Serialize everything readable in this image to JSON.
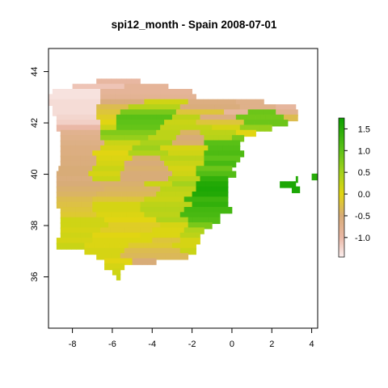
{
  "chart_data": {
    "type": "heatmap",
    "title": "spi12_month - Spain 2008-07-01",
    "xlabel": "",
    "ylabel": "",
    "xlim": [
      -9.2,
      4.3
    ],
    "ylim": [
      34.0,
      44.9
    ],
    "x_ticks": [
      -8,
      -6,
      -4,
      -2,
      0,
      2,
      4
    ],
    "y_ticks": [
      36,
      38,
      40,
      42,
      44
    ],
    "x_tick_labels": [
      "-8",
      "-6",
      "-4",
      "-2",
      "0",
      "2",
      "4"
    ],
    "y_tick_labels": [
      "36",
      "38",
      "40",
      "42",
      "44"
    ],
    "grid": false,
    "legend": {
      "position": "right",
      "range": [
        -1.45,
        1.75
      ],
      "ticks": [
        -1.0,
        -0.5,
        0.0,
        0.5,
        1.0,
        1.5
      ],
      "tick_labels": [
        "-1.0",
        "-0.5",
        "0.0",
        "0.5",
        "1.0",
        "1.5"
      ],
      "color_stops": [
        {
          "value": -1.45,
          "color": "#fbeeee"
        },
        {
          "value": -1.0,
          "color": "#eab8a6"
        },
        {
          "value": -0.5,
          "color": "#d8ac78"
        },
        {
          "value": 0.0,
          "color": "#e1d512"
        },
        {
          "value": 0.5,
          "color": "#a4d21c"
        },
        {
          "value": 1.0,
          "color": "#5ec218"
        },
        {
          "value": 1.75,
          "color": "#0ca000"
        }
      ]
    },
    "cell_size_deg": 0.25,
    "cell_rows": [
      {
        "lat": 43.6,
        "lon_from": -6.8,
        "lon_to": -4.6,
        "value": -0.95
      },
      {
        "lat": 43.4,
        "lon_from": -8.0,
        "lon_to": -5.4,
        "value": -1.1
      },
      {
        "lat": 43.4,
        "lon_from": -5.4,
        "lon_to": -3.2,
        "value": -0.85
      },
      {
        "lat": 43.2,
        "lon_from": -9.0,
        "lon_to": -6.6,
        "value": -1.35
      },
      {
        "lat": 43.2,
        "lon_from": -6.6,
        "lon_to": -2.0,
        "value": -0.85
      },
      {
        "lat": 43.0,
        "lon_from": -9.2,
        "lon_to": -6.6,
        "value": -1.35
      },
      {
        "lat": 43.0,
        "lon_from": -6.6,
        "lon_to": -1.8,
        "value": -0.8
      },
      {
        "lat": 42.8,
        "lon_from": -9.2,
        "lon_to": -6.6,
        "value": -1.3
      },
      {
        "lat": 42.8,
        "lon_from": -6.6,
        "lon_to": -4.4,
        "value": -0.55
      },
      {
        "lat": 42.8,
        "lon_from": -4.4,
        "lon_to": -2.2,
        "value": 0.15
      },
      {
        "lat": 42.8,
        "lon_from": -2.2,
        "lon_to": 0.2,
        "value": -0.6
      },
      {
        "lat": 42.8,
        "lon_from": 0.2,
        "lon_to": 1.6,
        "value": -0.7
      },
      {
        "lat": 42.6,
        "lon_from": -9.0,
        "lon_to": -6.8,
        "value": -1.3
      },
      {
        "lat": 42.6,
        "lon_from": -6.8,
        "lon_to": -5.2,
        "value": -0.3
      },
      {
        "lat": 42.6,
        "lon_from": -5.2,
        "lon_to": -2.6,
        "value": 0.35
      },
      {
        "lat": 42.6,
        "lon_from": -2.6,
        "lon_to": 0.4,
        "value": -0.55
      },
      {
        "lat": 42.6,
        "lon_from": 0.4,
        "lon_to": 2.2,
        "value": -0.7
      },
      {
        "lat": 42.6,
        "lon_from": 2.2,
        "lon_to": 3.2,
        "value": -0.9
      },
      {
        "lat": 42.4,
        "lon_from": -9.0,
        "lon_to": -6.8,
        "value": -1.3
      },
      {
        "lat": 42.4,
        "lon_from": -6.8,
        "lon_to": -5.6,
        "value": -0.2
      },
      {
        "lat": 42.4,
        "lon_from": -5.6,
        "lon_to": -2.8,
        "value": 0.8
      },
      {
        "lat": 42.4,
        "lon_from": -2.8,
        "lon_to": -0.4,
        "value": -0.2
      },
      {
        "lat": 42.4,
        "lon_from": -0.4,
        "lon_to": 0.8,
        "value": -0.9
      },
      {
        "lat": 42.4,
        "lon_from": 0.8,
        "lon_to": 2.2,
        "value": 0.9
      },
      {
        "lat": 42.4,
        "lon_from": 2.2,
        "lon_to": 3.3,
        "value": -0.75
      },
      {
        "lat": 42.2,
        "lon_from": -8.8,
        "lon_to": -6.8,
        "value": -1.25
      },
      {
        "lat": 42.2,
        "lon_from": -6.8,
        "lon_to": -5.8,
        "value": -0.1
      },
      {
        "lat": 42.2,
        "lon_from": -5.8,
        "lon_to": -3.0,
        "value": 1.05
      },
      {
        "lat": 42.2,
        "lon_from": -3.0,
        "lon_to": -1.6,
        "value": 0.3
      },
      {
        "lat": 42.2,
        "lon_from": -1.6,
        "lon_to": 0.2,
        "value": -0.6
      },
      {
        "lat": 42.2,
        "lon_from": 0.2,
        "lon_to": 2.6,
        "value": 0.85
      },
      {
        "lat": 42.2,
        "lon_from": 2.6,
        "lon_to": 3.3,
        "value": -0.3
      },
      {
        "lat": 42.0,
        "lon_from": -8.8,
        "lon_to": -6.6,
        "value": -1.2
      },
      {
        "lat": 42.0,
        "lon_from": -6.6,
        "lon_to": -5.8,
        "value": 0.0
      },
      {
        "lat": 42.0,
        "lon_from": -5.8,
        "lon_to": -3.4,
        "value": 1.0
      },
      {
        "lat": 42.0,
        "lon_from": -3.4,
        "lon_to": -1.8,
        "value": 0.2
      },
      {
        "lat": 42.0,
        "lon_from": -1.8,
        "lon_to": 0.6,
        "value": -0.2
      },
      {
        "lat": 42.0,
        "lon_from": 0.6,
        "lon_to": 2.8,
        "value": 0.9
      },
      {
        "lat": 41.8,
        "lon_from": -8.8,
        "lon_to": -6.6,
        "value": -1.0
      },
      {
        "lat": 41.8,
        "lon_from": -6.6,
        "lon_to": -5.8,
        "value": 0.2
      },
      {
        "lat": 41.8,
        "lon_from": -5.8,
        "lon_to": -3.6,
        "value": 0.95
      },
      {
        "lat": 41.8,
        "lon_from": -3.6,
        "lon_to": -1.0,
        "value": 0.25
      },
      {
        "lat": 41.8,
        "lon_from": -1.0,
        "lon_to": 0.4,
        "value": 0.1
      },
      {
        "lat": 41.8,
        "lon_from": 0.4,
        "lon_to": 2.0,
        "value": 0.6
      },
      {
        "lat": 41.6,
        "lon_from": -8.6,
        "lon_to": -6.6,
        "value": -0.75
      },
      {
        "lat": 41.6,
        "lon_from": -6.6,
        "lon_to": -3.8,
        "value": 0.75
      },
      {
        "lat": 41.6,
        "lon_from": -3.8,
        "lon_to": -2.6,
        "value": 0.3
      },
      {
        "lat": 41.6,
        "lon_from": -2.6,
        "lon_to": -1.6,
        "value": -0.4
      },
      {
        "lat": 41.6,
        "lon_from": -1.6,
        "lon_to": 0.2,
        "value": 0.3
      },
      {
        "lat": 41.6,
        "lon_from": 0.2,
        "lon_to": 1.2,
        "value": 0.0
      },
      {
        "lat": 41.4,
        "lon_from": -8.6,
        "lon_to": -6.6,
        "value": -0.7
      },
      {
        "lat": 41.4,
        "lon_from": -6.6,
        "lon_to": -4.2,
        "value": 0.6
      },
      {
        "lat": 41.4,
        "lon_from": -4.2,
        "lon_to": -2.8,
        "value": 0.3
      },
      {
        "lat": 41.4,
        "lon_from": -2.8,
        "lon_to": -1.4,
        "value": -0.5
      },
      {
        "lat": 41.4,
        "lon_from": -1.4,
        "lon_to": 0.0,
        "value": 0.35
      },
      {
        "lat": 41.4,
        "lon_from": 0.0,
        "lon_to": 0.6,
        "value": 0.8
      },
      {
        "lat": 41.2,
        "lon_from": -8.6,
        "lon_to": -6.4,
        "value": -0.65
      },
      {
        "lat": 41.2,
        "lon_from": -6.4,
        "lon_to": -4.6,
        "value": 0.2
      },
      {
        "lat": 41.2,
        "lon_from": -4.6,
        "lon_to": -3.0,
        "value": 0.45
      },
      {
        "lat": 41.2,
        "lon_from": -3.0,
        "lon_to": -1.4,
        "value": -0.45
      },
      {
        "lat": 41.2,
        "lon_from": -1.4,
        "lon_to": 0.4,
        "value": 1.05
      },
      {
        "lat": 41.0,
        "lon_from": -8.6,
        "lon_to": -6.6,
        "value": -0.6
      },
      {
        "lat": 41.0,
        "lon_from": -6.6,
        "lon_to": -5.0,
        "value": 0.1
      },
      {
        "lat": 41.0,
        "lon_from": -5.0,
        "lon_to": -3.6,
        "value": 0.55
      },
      {
        "lat": 41.0,
        "lon_from": -3.6,
        "lon_to": -1.2,
        "value": 0.1
      },
      {
        "lat": 41.0,
        "lon_from": -1.2,
        "lon_to": 0.4,
        "value": 1.1
      },
      {
        "lat": 40.8,
        "lon_from": -8.6,
        "lon_to": -7.0,
        "value": -0.6
      },
      {
        "lat": 40.8,
        "lon_from": -7.0,
        "lon_to": -5.2,
        "value": 0.0
      },
      {
        "lat": 40.8,
        "lon_from": -5.2,
        "lon_to": -3.2,
        "value": 0.4
      },
      {
        "lat": 40.8,
        "lon_from": -3.2,
        "lon_to": -1.4,
        "value": 0.15
      },
      {
        "lat": 40.8,
        "lon_from": -1.4,
        "lon_to": 0.6,
        "value": 1.15
      },
      {
        "lat": 40.6,
        "lon_from": -8.6,
        "lon_to": -6.8,
        "value": -0.55
      },
      {
        "lat": 40.6,
        "lon_from": -6.8,
        "lon_to": -5.0,
        "value": 0.05
      },
      {
        "lat": 40.6,
        "lon_from": -5.0,
        "lon_to": -3.6,
        "value": -0.45
      },
      {
        "lat": 40.6,
        "lon_from": -3.6,
        "lon_to": -1.4,
        "value": 0.3
      },
      {
        "lat": 40.6,
        "lon_from": -1.4,
        "lon_to": 0.4,
        "value": 1.0
      },
      {
        "lat": 40.4,
        "lon_from": -8.6,
        "lon_to": -6.8,
        "value": -0.55
      },
      {
        "lat": 40.4,
        "lon_from": -6.8,
        "lon_to": -5.4,
        "value": 0.1
      },
      {
        "lat": 40.4,
        "lon_from": -5.4,
        "lon_to": -3.4,
        "value": -0.5
      },
      {
        "lat": 40.4,
        "lon_from": -3.4,
        "lon_to": -1.4,
        "value": 0.2
      },
      {
        "lat": 40.4,
        "lon_from": -1.4,
        "lon_to": 0.2,
        "value": 1.2
      },
      {
        "lat": 40.2,
        "lon_from": -8.7,
        "lon_to": -7.0,
        "value": -0.5
      },
      {
        "lat": 40.2,
        "lon_from": -7.0,
        "lon_to": -5.4,
        "value": 0.2
      },
      {
        "lat": 40.2,
        "lon_from": -5.4,
        "lon_to": -3.2,
        "value": -0.45
      },
      {
        "lat": 40.2,
        "lon_from": -3.2,
        "lon_to": -1.8,
        "value": 0.1
      },
      {
        "lat": 40.2,
        "lon_from": -1.8,
        "lon_to": 0.0,
        "value": 0.9
      },
      {
        "lat": 40.0,
        "lon_from": -8.8,
        "lon_to": -7.2,
        "value": -0.5
      },
      {
        "lat": 40.0,
        "lon_from": -7.2,
        "lon_to": -5.6,
        "value": 0.1
      },
      {
        "lat": 40.0,
        "lon_from": -5.6,
        "lon_to": -3.0,
        "value": -0.5
      },
      {
        "lat": 40.0,
        "lon_from": -3.0,
        "lon_to": -1.8,
        "value": 0.15
      },
      {
        "lat": 40.0,
        "lon_from": -1.8,
        "lon_to": 0.2,
        "value": 1.1
      },
      {
        "lat": 39.8,
        "lon_from": -8.8,
        "lon_to": -7.0,
        "value": -0.55
      },
      {
        "lat": 39.8,
        "lon_from": -7.0,
        "lon_to": -5.6,
        "value": 0.2
      },
      {
        "lat": 39.8,
        "lon_from": -5.6,
        "lon_to": -3.2,
        "value": -0.5
      },
      {
        "lat": 39.8,
        "lon_from": -3.2,
        "lon_to": -1.6,
        "value": 0.3
      },
      {
        "lat": 39.8,
        "lon_from": -1.6,
        "lon_to": -0.2,
        "value": 1.4
      },
      {
        "lat": 39.6,
        "lon_from": -8.8,
        "lon_to": -6.6,
        "value": -0.5
      },
      {
        "lat": 39.6,
        "lon_from": -6.6,
        "lon_to": -4.4,
        "value": -0.45
      },
      {
        "lat": 39.6,
        "lon_from": -4.4,
        "lon_to": -3.0,
        "value": 0.2
      },
      {
        "lat": 39.6,
        "lon_from": -3.0,
        "lon_to": -1.8,
        "value": 0.5
      },
      {
        "lat": 39.6,
        "lon_from": -1.8,
        "lon_to": -0.2,
        "value": 1.55
      },
      {
        "lat": 39.4,
        "lon_from": -8.8,
        "lon_to": -6.4,
        "value": -0.45
      },
      {
        "lat": 39.4,
        "lon_from": -6.4,
        "lon_to": -3.6,
        "value": -0.4
      },
      {
        "lat": 39.4,
        "lon_from": -3.6,
        "lon_to": -1.8,
        "value": 0.3
      },
      {
        "lat": 39.4,
        "lon_from": -1.8,
        "lon_to": -0.2,
        "value": 1.6
      },
      {
        "lat": 39.2,
        "lon_from": -8.8,
        "lon_to": -6.8,
        "value": -0.4
      },
      {
        "lat": 39.2,
        "lon_from": -6.8,
        "lon_to": -3.8,
        "value": -0.35
      },
      {
        "lat": 39.2,
        "lon_from": -3.8,
        "lon_to": -2.0,
        "value": 0.25
      },
      {
        "lat": 39.2,
        "lon_from": -2.0,
        "lon_to": -0.2,
        "value": 1.55
      },
      {
        "lat": 39.0,
        "lon_from": -8.8,
        "lon_to": -7.0,
        "value": -0.3
      },
      {
        "lat": 39.0,
        "lon_from": -7.0,
        "lon_to": -4.4,
        "value": -0.2
      },
      {
        "lat": 39.0,
        "lon_from": -4.4,
        "lon_to": -2.4,
        "value": 0.2
      },
      {
        "lat": 39.0,
        "lon_from": -2.4,
        "lon_to": -0.2,
        "value": 1.3
      },
      {
        "lat": 38.8,
        "lon_from": -8.8,
        "lon_to": -7.0,
        "value": -0.25
      },
      {
        "lat": 38.8,
        "lon_from": -7.0,
        "lon_to": -4.6,
        "value": 0.1
      },
      {
        "lat": 38.8,
        "lon_from": -4.6,
        "lon_to": -2.0,
        "value": 0.3
      },
      {
        "lat": 38.8,
        "lon_from": -2.0,
        "lon_to": -0.2,
        "value": 1.4
      },
      {
        "lat": 38.6,
        "lon_from": -8.6,
        "lon_to": -7.0,
        "value": -0.2
      },
      {
        "lat": 38.6,
        "lon_from": -7.0,
        "lon_to": -4.6,
        "value": 0.1
      },
      {
        "lat": 38.6,
        "lon_from": -4.6,
        "lon_to": -2.4,
        "value": 0.35
      },
      {
        "lat": 38.6,
        "lon_from": -2.4,
        "lon_to": 0.0,
        "value": 1.25
      },
      {
        "lat": 38.4,
        "lon_from": -8.6,
        "lon_to": -6.8,
        "value": -0.15
      },
      {
        "lat": 38.4,
        "lon_from": -6.8,
        "lon_to": -4.4,
        "value": 0.05
      },
      {
        "lat": 38.4,
        "lon_from": -4.4,
        "lon_to": -2.6,
        "value": 0.3
      },
      {
        "lat": 38.4,
        "lon_from": -2.6,
        "lon_to": -0.6,
        "value": 1.2
      },
      {
        "lat": 38.2,
        "lon_from": -8.6,
        "lon_to": -6.4,
        "value": 0.15
      },
      {
        "lat": 38.2,
        "lon_from": -6.4,
        "lon_to": -3.8,
        "value": 0.0
      },
      {
        "lat": 38.2,
        "lon_from": -3.8,
        "lon_to": -2.2,
        "value": 0.4
      },
      {
        "lat": 38.2,
        "lon_from": -2.2,
        "lon_to": -0.6,
        "value": 1.1
      },
      {
        "lat": 38.0,
        "lon_from": -8.6,
        "lon_to": -6.2,
        "value": 0.15
      },
      {
        "lat": 38.0,
        "lon_from": -6.2,
        "lon_to": -3.6,
        "value": -0.1
      },
      {
        "lat": 38.0,
        "lon_from": -3.6,
        "lon_to": -2.2,
        "value": 0.1
      },
      {
        "lat": 38.0,
        "lon_from": -2.2,
        "lon_to": -1.0,
        "value": 0.8
      },
      {
        "lat": 37.8,
        "lon_from": -8.6,
        "lon_to": -6.6,
        "value": 0.1
      },
      {
        "lat": 37.8,
        "lon_from": -6.6,
        "lon_to": -4.0,
        "value": -0.1
      },
      {
        "lat": 37.8,
        "lon_from": -4.0,
        "lon_to": -2.4,
        "value": 0.05
      },
      {
        "lat": 37.8,
        "lon_from": -2.4,
        "lon_to": -1.4,
        "value": 0.4
      },
      {
        "lat": 37.6,
        "lon_from": -8.6,
        "lon_to": -7.0,
        "value": 0.15
      },
      {
        "lat": 37.6,
        "lon_from": -7.0,
        "lon_to": -4.6,
        "value": 0.0
      },
      {
        "lat": 37.6,
        "lon_from": -4.6,
        "lon_to": -2.6,
        "value": 0.05
      },
      {
        "lat": 37.6,
        "lon_from": -2.6,
        "lon_to": -1.6,
        "value": 0.3
      },
      {
        "lat": 37.4,
        "lon_from": -8.8,
        "lon_to": -7.0,
        "value": 0.1
      },
      {
        "lat": 37.4,
        "lon_from": -7.0,
        "lon_to": -4.0,
        "value": 0.05
      },
      {
        "lat": 37.4,
        "lon_from": -4.0,
        "lon_to": -2.6,
        "value": -0.2
      },
      {
        "lat": 37.4,
        "lon_from": -2.6,
        "lon_to": -1.6,
        "value": 0.1
      },
      {
        "lat": 37.2,
        "lon_from": -8.8,
        "lon_to": -7.4,
        "value": 0.2
      },
      {
        "lat": 37.2,
        "lon_from": -7.4,
        "lon_to": -5.2,
        "value": 0.05
      },
      {
        "lat": 37.2,
        "lon_from": -5.2,
        "lon_to": -3.0,
        "value": -0.15
      },
      {
        "lat": 37.2,
        "lon_from": -3.0,
        "lon_to": -1.8,
        "value": 0.1
      },
      {
        "lat": 37.0,
        "lon_from": -7.4,
        "lon_to": -5.4,
        "value": 0.1
      },
      {
        "lat": 37.0,
        "lon_from": -5.4,
        "lon_to": -2.6,
        "value": -0.3
      },
      {
        "lat": 37.0,
        "lon_from": -2.6,
        "lon_to": -1.8,
        "value": 0.2
      },
      {
        "lat": 36.8,
        "lon_from": -6.8,
        "lon_to": -5.6,
        "value": 0.1
      },
      {
        "lat": 36.8,
        "lon_from": -5.6,
        "lon_to": -2.2,
        "value": -0.35
      },
      {
        "lat": 36.6,
        "lon_from": -6.4,
        "lon_to": -5.0,
        "value": 0.0
      },
      {
        "lat": 36.6,
        "lon_from": -5.0,
        "lon_to": -3.8,
        "value": -0.5
      },
      {
        "lat": 36.4,
        "lon_from": -6.4,
        "lon_to": -5.4,
        "value": 0.1
      },
      {
        "lat": 36.2,
        "lon_from": -6.0,
        "lon_to": -5.6,
        "value": 0.15
      },
      {
        "lat": 36.0,
        "lon_from": -5.8,
        "lon_to": -5.6,
        "value": 0.2
      },
      {
        "lat": 39.8,
        "lon_from": 3.2,
        "lon_to": 3.3,
        "value": 1.5
      },
      {
        "lat": 39.6,
        "lon_from": 2.4,
        "lon_to": 3.2,
        "value": 1.6
      },
      {
        "lat": 39.4,
        "lon_from": 3.0,
        "lon_to": 3.4,
        "value": 1.6
      },
      {
        "lat": 39.9,
        "lon_from": 4.0,
        "lon_to": 4.3,
        "value": 1.5
      }
    ]
  }
}
